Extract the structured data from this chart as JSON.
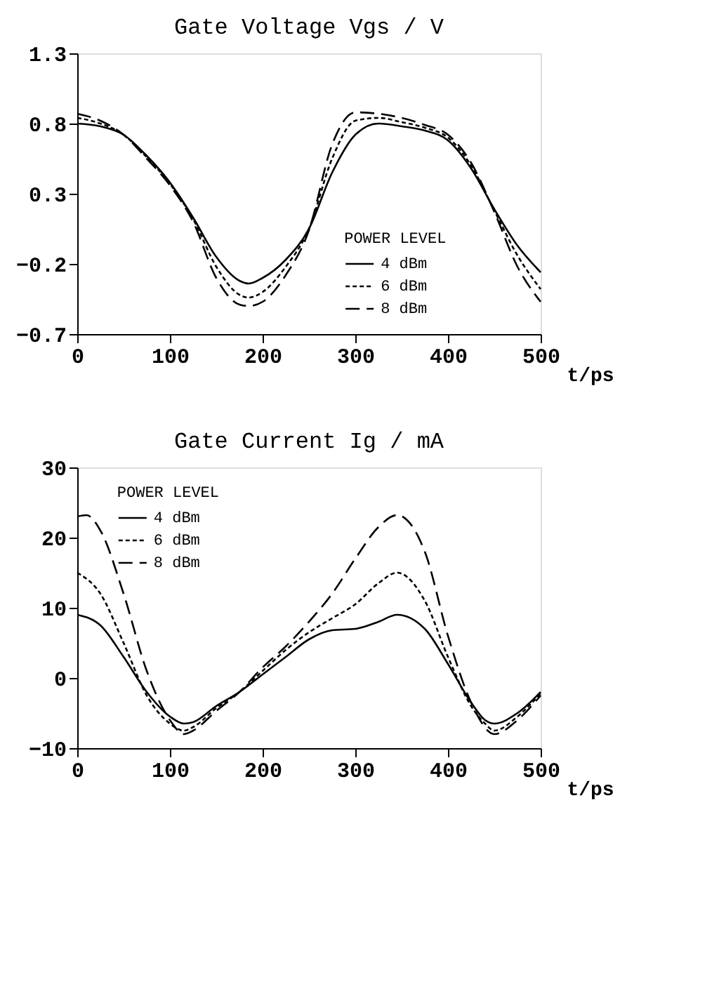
{
  "chart_data": [
    {
      "type": "line",
      "title": "Gate Voltage Vgs / V",
      "xlabel": "t/ps",
      "legend_title": "POWER LEVEL",
      "legend": "bottom right",
      "grid": false,
      "xlim": [
        0,
        500
      ],
      "xticks": [
        0,
        100,
        200,
        300,
        400,
        500
      ],
      "ylim": [
        -0.7,
        1.3
      ],
      "yticks": [
        -0.7,
        -0.2,
        0.3,
        0.8,
        1.3
      ],
      "series": [
        {
          "name": "4 dBm",
          "color": "#000000",
          "line_style": "solid",
          "x": [
            0,
            25,
            50,
            75,
            100,
            125,
            150,
            175,
            185,
            200,
            225,
            250,
            275,
            300,
            325,
            350,
            375,
            400,
            425,
            450,
            475,
            500
          ],
          "values": [
            0.8,
            0.78,
            0.72,
            0.57,
            0.38,
            0.13,
            -0.15,
            -0.32,
            -0.34,
            -0.3,
            -0.17,
            0.05,
            0.45,
            0.72,
            0.8,
            0.78,
            0.75,
            0.68,
            0.48,
            0.19,
            -0.07,
            -0.26
          ]
        },
        {
          "name": "6 dBm",
          "color": "#000000",
          "line_style": "dotted",
          "x": [
            0,
            25,
            50,
            75,
            100,
            125,
            150,
            175,
            185,
            200,
            225,
            250,
            275,
            300,
            325,
            350,
            375,
            400,
            425,
            450,
            475,
            500
          ],
          "values": [
            0.84,
            0.8,
            0.72,
            0.56,
            0.37,
            0.12,
            -0.22,
            -0.42,
            -0.44,
            -0.4,
            -0.22,
            0.05,
            0.55,
            0.82,
            0.84,
            0.81,
            0.77,
            0.7,
            0.5,
            0.18,
            -0.14,
            -0.38
          ]
        },
        {
          "name": "8 dBm",
          "color": "#000000",
          "line_style": "dashed",
          "x": [
            0,
            25,
            50,
            75,
            100,
            125,
            150,
            175,
            185,
            200,
            225,
            250,
            275,
            300,
            325,
            350,
            375,
            400,
            425,
            450,
            475,
            500
          ],
          "values": [
            0.87,
            0.82,
            0.72,
            0.55,
            0.36,
            0.1,
            -0.3,
            -0.49,
            -0.5,
            -0.47,
            -0.28,
            0.04,
            0.65,
            0.88,
            0.87,
            0.84,
            0.79,
            0.72,
            0.52,
            0.17,
            -0.22,
            -0.47
          ]
        }
      ]
    },
    {
      "type": "line",
      "title": "Gate Current Ig / mA",
      "xlabel": "t/ps",
      "legend_title": "POWER LEVEL",
      "legend": "top left",
      "grid": false,
      "xlim": [
        0,
        500
      ],
      "xticks": [
        0,
        100,
        200,
        300,
        400,
        500
      ],
      "ylim": [
        -10,
        30
      ],
      "yticks": [
        -10,
        0,
        10,
        20,
        30
      ],
      "series": [
        {
          "name": "4 dBm",
          "color": "#000000",
          "line_style": "solid",
          "x": [
            0,
            25,
            50,
            75,
            100,
            115,
            125,
            150,
            175,
            200,
            225,
            250,
            275,
            300,
            325,
            345,
            375,
            400,
            425,
            440,
            450,
            475,
            500
          ],
          "values": [
            9,
            7.5,
            3,
            -2,
            -5.5,
            -6.5,
            -6.3,
            -4,
            -2,
            0.5,
            3,
            5.5,
            6.8,
            7,
            8,
            9,
            7,
            2,
            -3.5,
            -6,
            -6.5,
            -5,
            -2
          ]
        },
        {
          "name": "6 dBm",
          "color": "#000000",
          "line_style": "dotted",
          "x": [
            0,
            25,
            50,
            75,
            100,
            115,
            125,
            150,
            175,
            200,
            225,
            250,
            275,
            300,
            325,
            345,
            375,
            400,
            425,
            440,
            450,
            475,
            500
          ],
          "values": [
            15,
            12,
            5,
            -2.5,
            -6.5,
            -7.5,
            -7,
            -4.3,
            -2,
            1,
            4,
            6.5,
            8.5,
            10.5,
            13.5,
            15,
            11,
            3,
            -4,
            -6.5,
            -7.5,
            -5.5,
            -2.2
          ]
        },
        {
          "name": "8 dBm",
          "color": "#000000",
          "line_style": "dashed",
          "x": [
            0,
            10,
            25,
            50,
            75,
            100,
            115,
            125,
            150,
            175,
            200,
            225,
            250,
            275,
            300,
            325,
            345,
            375,
            400,
            425,
            450,
            475,
            500
          ],
          "values": [
            23,
            23.2,
            21,
            12,
            1,
            -6,
            -8,
            -7.5,
            -4.7,
            -2,
            1.5,
            4.5,
            8,
            12,
            17,
            21.5,
            23.2,
            18,
            6,
            -3.5,
            -8,
            -6,
            -2.5
          ]
        }
      ]
    }
  ]
}
